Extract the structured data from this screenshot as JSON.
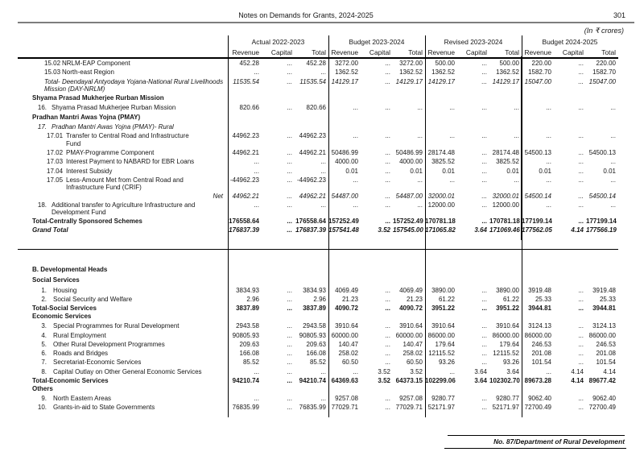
{
  "page": {
    "header_title": "Notes on Demands for Grants, 2024-2025",
    "page_number": "301",
    "units_note": "(In ₹ crores)",
    "footer_note": "No. 87/Department of Rural Development"
  },
  "table": {
    "column_groups": [
      {
        "label": "Actual 2022-2023"
      },
      {
        "label": "Budget 2023-2024"
      },
      {
        "label": "Revised 2023-2024"
      },
      {
        "label": "Budget 2024-2025"
      }
    ],
    "sub_columns": [
      "Revenue",
      "Capital",
      "Total"
    ],
    "rows_a": [
      {
        "cls": "r-sub",
        "num": "15.02",
        "label": "NRLM-EAP Component",
        "values": [
          "452.28",
          "...",
          "452.28",
          "3272.00",
          "...",
          "3272.00",
          "500.00",
          "...",
          "500.00",
          "220.00",
          "...",
          "220.00"
        ]
      },
      {
        "cls": "r-sub",
        "num": "15.03",
        "label": "North-east Region",
        "values": [
          "...",
          "...",
          "...",
          "1362.52",
          "...",
          "1362.52",
          "1362.52",
          "...",
          "1362.52",
          "1582.70",
          "...",
          "1582.70"
        ]
      },
      {
        "cls": "r-total-i",
        "label": "Total- Deendayal Antyodaya Yojana-National Rural Livelihoods\nMission (DAY-NRLM)",
        "values": [
          "11535.54",
          "...",
          "11535.54",
          "14129.17",
          "...",
          "14129.17",
          "14129.17",
          "...",
          "14129.17",
          "15047.00",
          "...",
          "15047.00"
        ]
      },
      {
        "cls": "r-section",
        "label": "Shyama Prasad Mukherjee Rurban Mission"
      },
      {
        "cls": "r-item",
        "num": "16.",
        "label": "Shyama Prasad Mukherjee Rurban Mission",
        "values": [
          "820.66",
          "...",
          "820.66",
          "...",
          "...",
          "...",
          "...",
          "...",
          "...",
          "...",
          "...",
          "..."
        ]
      },
      {
        "cls": "r-section",
        "label": "Pradhan Mantri Awas Yojna (PMAY)"
      },
      {
        "cls": "r-item r-italic",
        "num": "17.",
        "label": "Pradhan Mantri Awas Yojna (PMAY)- Rural"
      },
      {
        "cls": "r-sub2",
        "num": "17.01",
        "label": "Transfer to Central Road and Infrastructure\nFund",
        "values": [
          "44962.23",
          "...",
          "44962.23",
          "...",
          "...",
          "...",
          "...",
          "...",
          "...",
          "...",
          "...",
          "..."
        ]
      },
      {
        "cls": "r-sub2",
        "num": "17.02",
        "label": "PMAY-Programme Component",
        "values": [
          "44962.21",
          "...",
          "44962.21",
          "50486.99",
          "...",
          "50486.99",
          "28174.48",
          "...",
          "28174.48",
          "54500.13",
          "...",
          "54500.13"
        ]
      },
      {
        "cls": "r-sub2",
        "num": "17.03",
        "label": "Interest Payment to NABARD for EBR Loans",
        "values": [
          "...",
          "...",
          "...",
          "4000.00",
          "...",
          "4000.00",
          "3825.52",
          "...",
          "3825.52",
          "...",
          "...",
          "..."
        ]
      },
      {
        "cls": "r-sub2",
        "num": "17.04",
        "label": "Interest Subsidy",
        "values": [
          "...",
          "...",
          "...",
          "0.01",
          "...",
          "0.01",
          "0.01",
          "...",
          "0.01",
          "0.01",
          "...",
          "0.01"
        ]
      },
      {
        "cls": "r-sub2",
        "num": "17.05",
        "label": "Less-Amount Met from Central Road and\nInfrastructure Fund (CRIF)",
        "values": [
          "-44962.23",
          "...",
          "-44962.23",
          "...",
          "...",
          "...",
          "...",
          "...",
          "...",
          "...",
          "...",
          "..."
        ]
      },
      {
        "cls": "r-net",
        "label": "Net",
        "values": [
          "44962.21",
          "...",
          "44962.21",
          "54487.00",
          "...",
          "54487.00",
          "32000.01",
          "...",
          "32000.01",
          "54500.14",
          "...",
          "54500.14"
        ]
      },
      {
        "cls": "r-item",
        "num": "18.",
        "label": "Additional transfer to Agriculture Infrastructure and\nDevelopment Fund",
        "values": [
          "...",
          "...",
          "...",
          "...",
          "...",
          "...",
          "12000.00",
          "...",
          "12000.00",
          "...",
          "...",
          "..."
        ]
      },
      {
        "cls": "r-bold",
        "label": "Total-Centrally Sponsored Schemes",
        "values": [
          "176558.64",
          "...",
          "176558.64",
          "157252.49",
          "...",
          "157252.49",
          "170781.18",
          "...",
          "170781.18",
          "177199.14",
          "...",
          "177199.14"
        ]
      },
      {
        "cls": "r-grand",
        "label": "Grand Total",
        "values": [
          "176837.39",
          "...",
          "176837.39",
          "157541.48",
          "3.52",
          "157545.00",
          "171065.82",
          "3.64",
          "171069.46",
          "177562.05",
          "4.14",
          "177566.19"
        ]
      }
    ],
    "rows_b": [
      {
        "cls": "r-section mb4",
        "label": "B. Developmental Heads"
      },
      {
        "cls": "r-section",
        "label": "Social Services"
      },
      {
        "cls": "r-bitem",
        "num": "1.",
        "label": "Housing",
        "values": [
          "3834.93",
          "...",
          "3834.93",
          "4069.49",
          "...",
          "4069.49",
          "3890.00",
          "...",
          "3890.00",
          "3919.48",
          "...",
          "3919.48"
        ]
      },
      {
        "cls": "r-bitem",
        "num": "2.",
        "label": "Social Security and Welfare",
        "values": [
          "2.96",
          "...",
          "2.96",
          "21.23",
          "...",
          "21.23",
          "61.22",
          "...",
          "61.22",
          "25.33",
          "...",
          "25.33"
        ]
      },
      {
        "cls": "r-bold mb0",
        "label": "Total-Social Services",
        "values": [
          "3837.89",
          "...",
          "3837.89",
          "4090.72",
          "...",
          "4090.72",
          "3951.22",
          "...",
          "3951.22",
          "3944.81",
          "...",
          "3944.81"
        ]
      },
      {
        "cls": "r-section mt0",
        "label": "Economic Services"
      },
      {
        "cls": "r-bitem",
        "num": "3.",
        "label": "Special Programmes for Rural Development",
        "values": [
          "2943.58",
          "...",
          "2943.58",
          "3910.64",
          "...",
          "3910.64",
          "3910.64",
          "...",
          "3910.64",
          "3124.13",
          "...",
          "3124.13"
        ]
      },
      {
        "cls": "r-bitem",
        "num": "4.",
        "label": "Rural Employment",
        "values": [
          "90805.93",
          "...",
          "90805.93",
          "60000.00",
          "...",
          "60000.00",
          "86000.00",
          "...",
          "86000.00",
          "86000.00",
          "...",
          "86000.00"
        ]
      },
      {
        "cls": "r-bitem",
        "num": "5.",
        "label": "Other Rural Development Programmes",
        "values": [
          "209.63",
          "...",
          "209.63",
          "140.47",
          "...",
          "140.47",
          "179.64",
          "...",
          "179.64",
          "246.53",
          "...",
          "246.53"
        ]
      },
      {
        "cls": "r-bitem",
        "num": "6.",
        "label": "Roads and Bridges",
        "values": [
          "166.08",
          "...",
          "166.08",
          "258.02",
          "...",
          "258.02",
          "12115.52",
          "...",
          "12115.52",
          "201.08",
          "...",
          "201.08"
        ]
      },
      {
        "cls": "r-bitem",
        "num": "7.",
        "label": "Secretariat-Economic Services",
        "values": [
          "85.52",
          "...",
          "85.52",
          "60.50",
          "...",
          "60.50",
          "93.26",
          "...",
          "93.26",
          "101.54",
          "...",
          "101.54"
        ]
      },
      {
        "cls": "r-bitem",
        "num": "8.",
        "label": "Capital Outlay on Other General Economic Services",
        "values": [
          "...",
          "...",
          "...",
          "...",
          "3.52",
          "3.52",
          "...",
          "3.64",
          "3.64",
          "...",
          "4.14",
          "4.14"
        ]
      },
      {
        "cls": "r-bold mb0",
        "label": "Total-Economic Services",
        "values": [
          "94210.74",
          "...",
          "94210.74",
          "64369.63",
          "3.52",
          "64373.15",
          "102299.06",
          "3.64",
          "102302.70",
          "89673.28",
          "4.14",
          "89677.42"
        ]
      },
      {
        "cls": "r-section mt0",
        "label": "Others"
      },
      {
        "cls": "r-bitem",
        "num": "9.",
        "label": "North Eastern Areas",
        "values": [
          "...",
          "...",
          "...",
          "9257.08",
          "...",
          "9257.08",
          "9280.77",
          "...",
          "9280.77",
          "9062.40",
          "...",
          "9062.40"
        ]
      },
      {
        "cls": "r-bitem",
        "num": "10.",
        "label": "Grants-in-aid to State Governments",
        "values": [
          "76835.99",
          "...",
          "76835.99",
          "77029.71",
          "...",
          "77029.71",
          "52171.97",
          "...",
          "52171.97",
          "72700.49",
          "...",
          "72700.49"
        ]
      }
    ]
  }
}
